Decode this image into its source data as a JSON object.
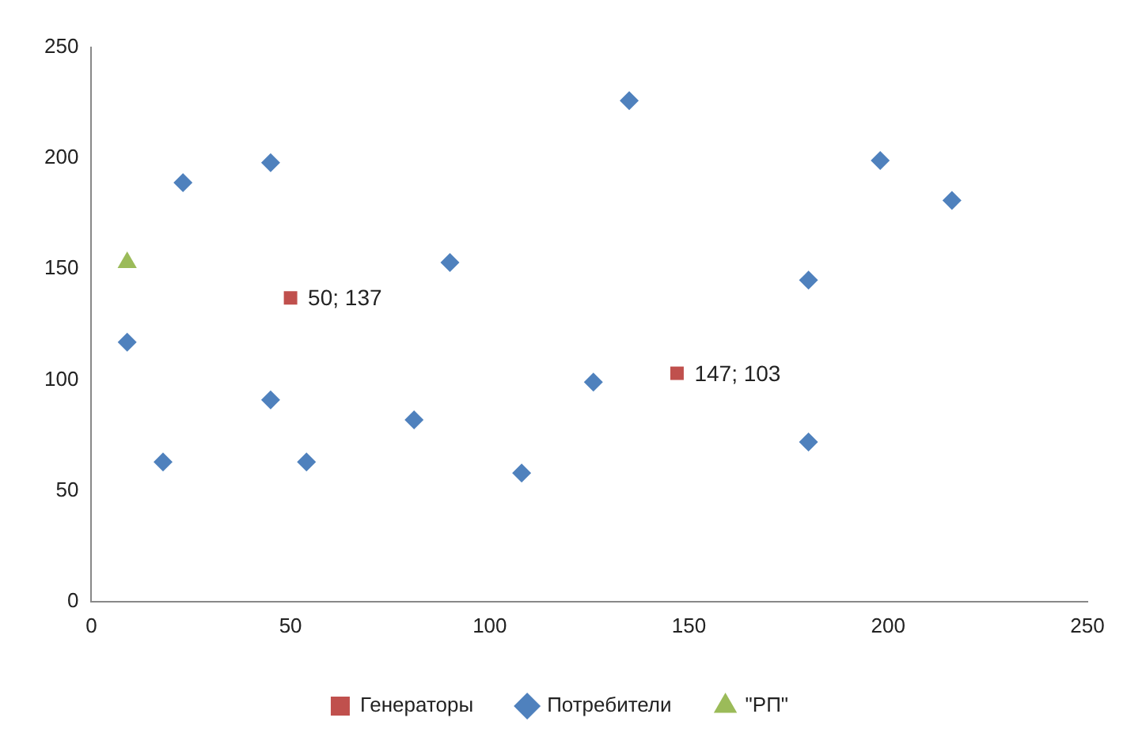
{
  "chart_data": {
    "type": "scatter",
    "xlim": [
      0,
      250
    ],
    "xticks": [
      0,
      50,
      100,
      150,
      200,
      250
    ],
    "ylim": [
      0,
      250
    ],
    "yticks": [
      0,
      50,
      100,
      150,
      200,
      250
    ],
    "grid": false,
    "legend": "bottom",
    "series": [
      {
        "name": "Генераторы",
        "color": "#c0504d",
        "marker": "square",
        "x": [
          50,
          147
        ],
        "values": [
          137,
          103
        ],
        "value_labels": [
          "50; 137",
          "147; 103"
        ]
      },
      {
        "name": "Потребители",
        "color": "#4f81bd",
        "marker": "diamond",
        "x": [
          9,
          18,
          23,
          45,
          45,
          54,
          81,
          90,
          108,
          126,
          135,
          180,
          180,
          198,
          216
        ],
        "values": [
          117,
          63,
          189,
          198,
          91,
          63,
          82,
          153,
          58,
          99,
          226,
          145,
          72,
          199,
          181
        ]
      },
      {
        "name": "\"РП\"",
        "color": "#9bbb59",
        "marker": "triangle",
        "x": [
          9
        ],
        "values": [
          153
        ]
      }
    ]
  }
}
